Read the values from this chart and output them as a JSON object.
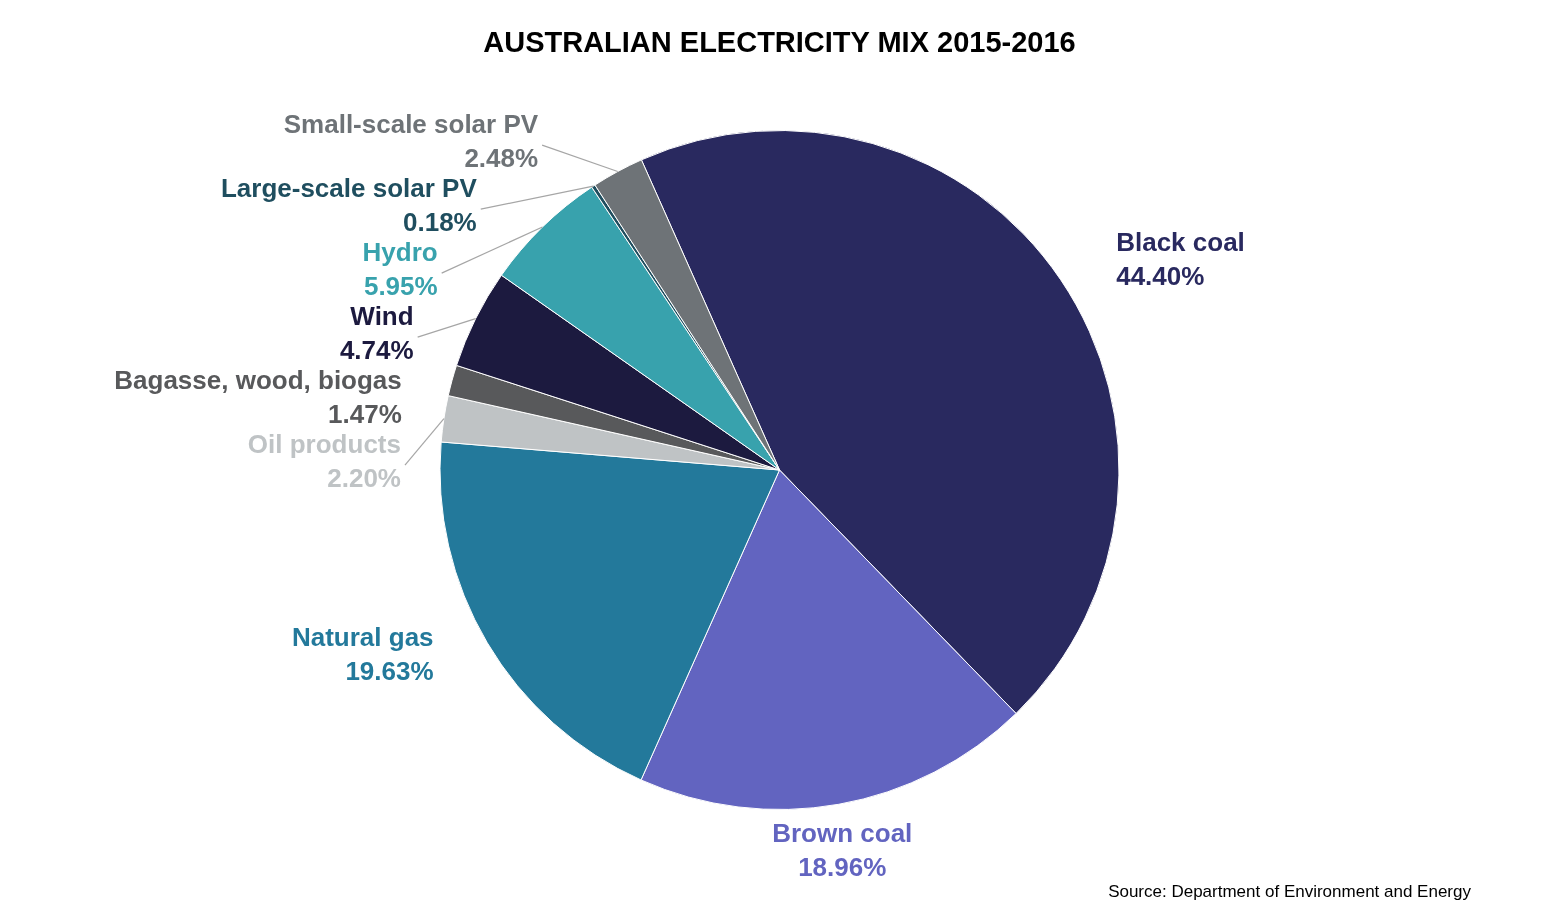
{
  "chart_data": {
    "type": "pie",
    "title": "AUSTRALIAN ELECTRICITY MIX 2015-2016",
    "categories": [
      "Black coal",
      "Brown coal",
      "Natural gas",
      "Oil products",
      "Bagasse, wood, biogas",
      "Wind",
      "Hydro",
      "Large-scale solar PV",
      "Small-scale solar PV"
    ],
    "values": [
      44.4,
      18.96,
      19.63,
      2.2,
      1.47,
      4.74,
      5.95,
      0.18,
      2.48
    ],
    "value_labels": [
      "44.40%",
      "18.96%",
      "19.63%",
      "2.20%",
      "1.47%",
      "4.74%",
      "5.95%",
      "0.18%",
      "2.48%"
    ],
    "colors": [
      "#29295f",
      "#6264c0",
      "#23799b",
      "#bfc3c5",
      "#58595b",
      "#1c1a3f",
      "#38a2ad",
      "#1f4e5f",
      "#6e7377"
    ],
    "legend": false,
    "annotations": [
      "Source: Department of Environment and Energy"
    ]
  }
}
